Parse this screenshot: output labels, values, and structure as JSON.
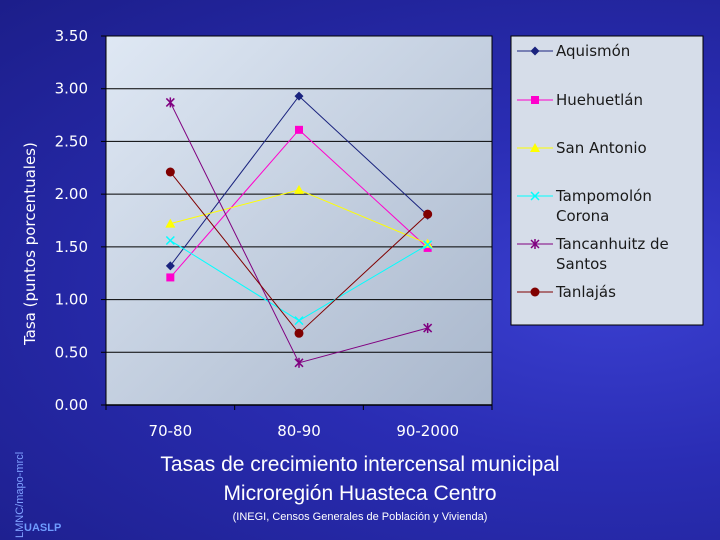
{
  "chart_data": {
    "type": "line",
    "title": "Tasas de crecimiento intercensal municipal",
    "subtitle": "Microregión Huasteca Centro",
    "source": "(INEGI, Censos Generales de Población y Vivienda)",
    "xlabel": "",
    "ylabel": "Tasa (puntos porcentuales)",
    "ylim": [
      0,
      3.5
    ],
    "yticks": [
      "0.00",
      "0.50",
      "1.00",
      "1.50",
      "2.00",
      "2.50",
      "3.00",
      "3.50"
    ],
    "categories": [
      "70-80",
      "80-90",
      "90-2000"
    ],
    "grid": true,
    "legend_position": "right",
    "series": [
      {
        "name": "Aquismón",
        "values": [
          1.32,
          2.93,
          1.8
        ],
        "color": "#1a237e",
        "marker": "diamond"
      },
      {
        "name": "Huehuetlán",
        "values": [
          1.21,
          2.61,
          1.49
        ],
        "color": "#ff00cc",
        "marker": "square"
      },
      {
        "name": "San Antonio",
        "values": [
          1.72,
          2.04,
          1.53
        ],
        "color": "#ffff00",
        "marker": "triangle"
      },
      {
        "name": "Tampomolón Corona",
        "values": [
          1.56,
          0.8,
          1.52
        ],
        "color": "#00ffff",
        "marker": "x"
      },
      {
        "name": "Tancanhuitz de Santos",
        "values": [
          2.87,
          0.4,
          0.73
        ],
        "color": "#800080",
        "marker": "star"
      },
      {
        "name": "Tanlajás",
        "values": [
          2.21,
          0.68,
          1.81
        ],
        "color": "#800000",
        "marker": "circle"
      }
    ]
  },
  "footer": {
    "credit": "LMNC/mapo-mrcl",
    "institution": "UASLP"
  }
}
